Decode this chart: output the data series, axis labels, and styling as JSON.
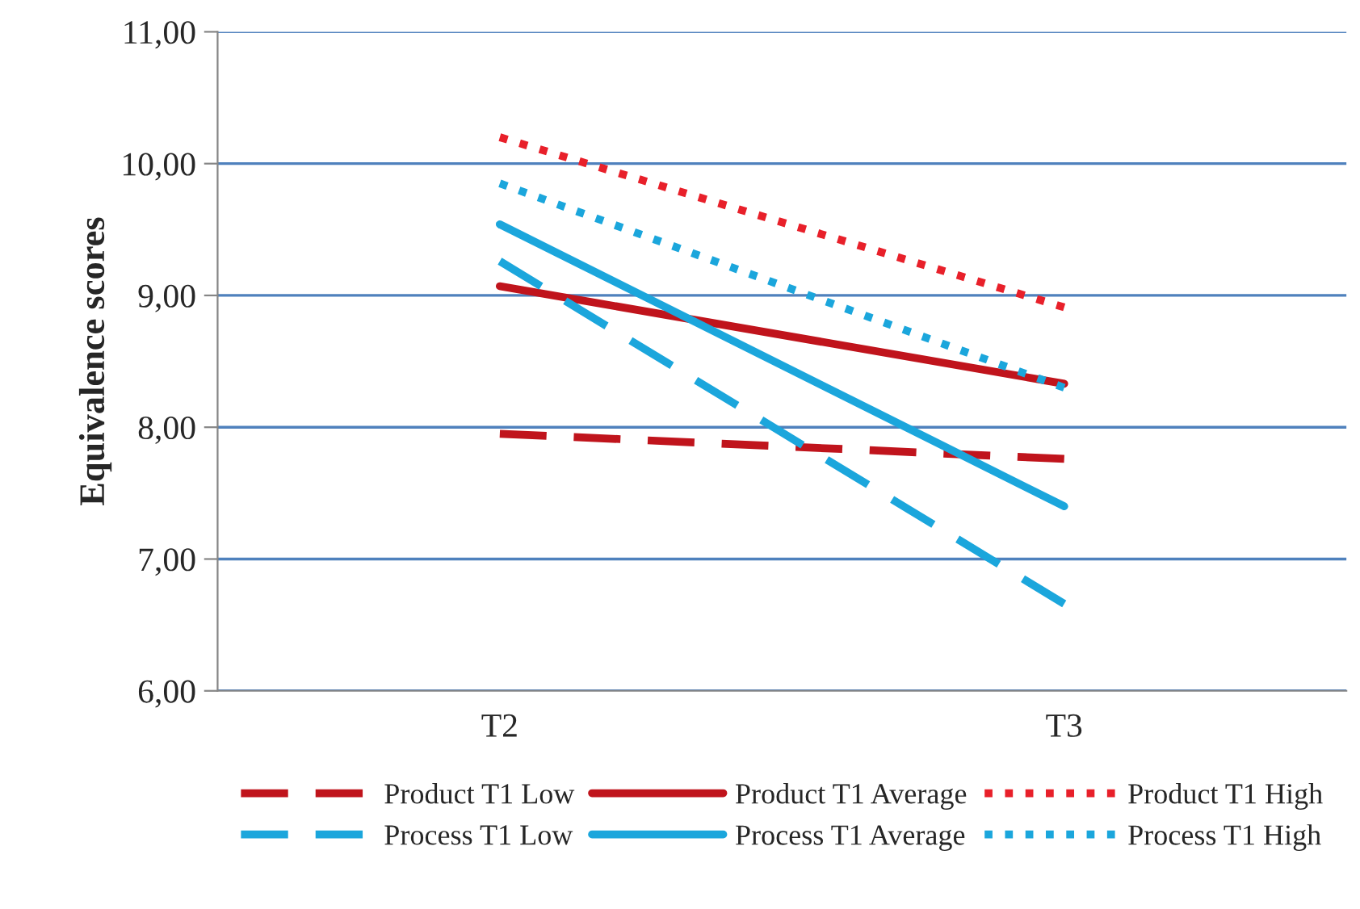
{
  "chart_data": {
    "type": "line",
    "ylabel": "Equivalence scores",
    "categories": [
      "T2",
      "T3"
    ],
    "series": [
      {
        "name": "Product T1 Low",
        "color": "#c0141c",
        "line_style": "dashed",
        "values": [
          7.95,
          7.76
        ]
      },
      {
        "name": "Product T1 Average",
        "color": "#c0141c",
        "line_style": "solid",
        "values": [
          9.07,
          8.33
        ]
      },
      {
        "name": "Product T1 High",
        "color": "#e8202a",
        "line_style": "dotted",
        "values": [
          10.2,
          8.91
        ]
      },
      {
        "name": "Process T1 Low",
        "color": "#1ba6dc",
        "line_style": "dashed",
        "values": [
          9.26,
          6.66
        ]
      },
      {
        "name": "Process T1 Average",
        "color": "#1ba6dc",
        "line_style": "solid",
        "values": [
          9.54,
          7.4
        ]
      },
      {
        "name": "Process T1 High",
        "color": "#1ba6dc",
        "line_style": "dotted",
        "values": [
          9.85,
          8.3
        ]
      }
    ],
    "ylim": [
      6,
      11
    ],
    "yticks": [
      {
        "value": 6,
        "label": "6,00"
      },
      {
        "value": 7,
        "label": "7,00"
      },
      {
        "value": 8,
        "label": "8,00"
      },
      {
        "value": 9,
        "label": "9,00"
      },
      {
        "value": 10,
        "label": "10,00"
      },
      {
        "value": 11,
        "label": "11,00"
      }
    ],
    "grid": "y",
    "legend": "bottom",
    "marker": "none"
  }
}
